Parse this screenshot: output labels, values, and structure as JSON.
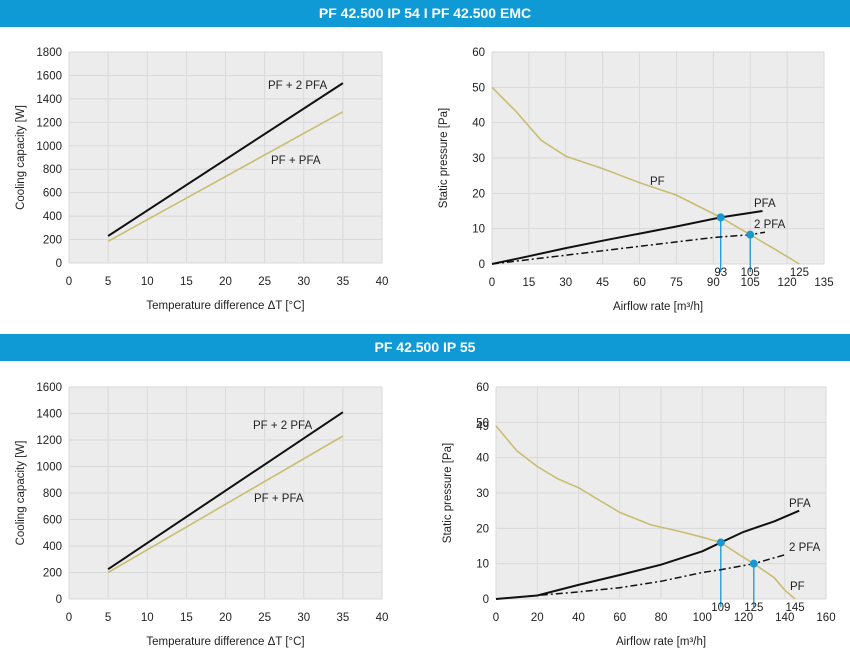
{
  "headers": {
    "top": "PF 42.500 IP 54 I PF 42.500 EMC",
    "bottom": "PF 42.500 IP 55"
  },
  "colors": {
    "banner": "#0f9ad6",
    "black": "#111111",
    "tan": "#c9bd72",
    "blue": "#1798d2",
    "grid": "#d9d9d9",
    "plot_bg": "#ececec"
  },
  "chart_data": [
    {
      "id": "cooling_top",
      "type": "line",
      "xlabel": "Temperature difference ΔT [°C]",
      "ylabel": "Cooling capacity [W]",
      "xlim": [
        0,
        40
      ],
      "ylim": [
        0,
        1800
      ],
      "xticks": [
        0,
        5,
        10,
        15,
        20,
        25,
        30,
        35,
        40
      ],
      "yticks": [
        0,
        200,
        400,
        600,
        800,
        1000,
        1200,
        1400,
        1600,
        1800
      ],
      "grid": true,
      "series": [
        {
          "name": "PF + 2 PFA",
          "color": "#111111",
          "points": [
            [
              5,
              230
            ],
            [
              35,
              1535
            ]
          ]
        },
        {
          "name": "PF + PFA",
          "color": "#c9bd72",
          "points": [
            [
              5,
              185
            ],
            [
              35,
              1290
            ]
          ]
        }
      ]
    },
    {
      "id": "airflow_top",
      "type": "line",
      "xlabel": "Airflow rate [m³/h]",
      "ylabel": "Static pressure [Pa]",
      "xlim": [
        0,
        135
      ],
      "ylim": [
        0,
        60
      ],
      "xticks": [
        0,
        15,
        30,
        45,
        60,
        75,
        90,
        105,
        120,
        135
      ],
      "yticks": [
        0,
        10,
        20,
        30,
        40,
        50,
        60
      ],
      "grid": true,
      "series": [
        {
          "name": "PF",
          "color": "#c9bd72",
          "points": [
            [
              0,
              50
            ],
            [
              10,
              43
            ],
            [
              20,
              35
            ],
            [
              30,
              30.5
            ],
            [
              45,
              27
            ],
            [
              60,
              23
            ],
            [
              75,
              19.5
            ],
            [
              93,
              13.2
            ],
            [
              105,
              8.3
            ],
            [
              115,
              4.2
            ],
            [
              125,
              0
            ]
          ]
        },
        {
          "name": "PFA",
          "color": "#111111",
          "points": [
            [
              0,
              0
            ],
            [
              15,
              2.2
            ],
            [
              30,
              4.5
            ],
            [
              45,
              6.6
            ],
            [
              60,
              8.6
            ],
            [
              75,
              10.6
            ],
            [
              93,
              13.2
            ],
            [
              110,
              15
            ]
          ]
        },
        {
          "name": "2 PFA",
          "color": "#111111",
          "dashed": true,
          "points": [
            [
              0,
              0
            ],
            [
              30,
              2.5
            ],
            [
              60,
              5
            ],
            [
              90,
              7.5
            ],
            [
              105,
              8.3
            ],
            [
              111,
              9
            ]
          ]
        }
      ],
      "operating_points": [
        {
          "x": 93,
          "y": 13.2,
          "label": "93"
        },
        {
          "x": 105,
          "y": 8.3,
          "label": "105"
        }
      ],
      "annotations": [
        {
          "x": 125,
          "label": "125"
        }
      ]
    },
    {
      "id": "cooling_bottom",
      "type": "line",
      "xlabel": "Temperature difference ΔT [°C]",
      "ylabel": "Cooling capacity [W]",
      "xlim": [
        0,
        40
      ],
      "ylim": [
        0,
        1600
      ],
      "xticks": [
        0,
        5,
        10,
        15,
        20,
        25,
        30,
        35,
        40
      ],
      "yticks": [
        0,
        200,
        400,
        600,
        800,
        1000,
        1200,
        1400,
        1600
      ],
      "grid": true,
      "series": [
        {
          "name": "PF + 2 PFA",
          "color": "#111111",
          "points": [
            [
              5,
              225
            ],
            [
              35,
              1410
            ]
          ]
        },
        {
          "name": "PF + PFA",
          "color": "#c9bd72",
          "points": [
            [
              5,
              200
            ],
            [
              35,
              1230
            ]
          ]
        }
      ]
    },
    {
      "id": "airflow_bottom",
      "type": "line",
      "xlabel": "Airflow rate [m³/h]",
      "ylabel": "Static pressure [Pa]",
      "xlim": [
        0,
        160
      ],
      "ylim": [
        0,
        60
      ],
      "xticks": [
        0,
        20,
        40,
        60,
        80,
        100,
        120,
        140,
        160
      ],
      "yticks": [
        0,
        10,
        20,
        30,
        40,
        50,
        60
      ],
      "extra_ytick": {
        "value": 49,
        "label": "49"
      },
      "grid": true,
      "series": [
        {
          "name": "PF",
          "color": "#c9bd72",
          "points": [
            [
              0,
              49
            ],
            [
              10,
              42
            ],
            [
              20,
              37.5
            ],
            [
              30,
              34
            ],
            [
              40,
              31.5
            ],
            [
              50,
              28
            ],
            [
              60,
              24.5
            ],
            [
              75,
              21
            ],
            [
              90,
              19
            ],
            [
              100,
              17.5
            ],
            [
              109,
              16
            ],
            [
              118,
              12.5
            ],
            [
              125,
              10
            ],
            [
              135,
              6
            ],
            [
              140,
              2.5
            ],
            [
              145,
              0
            ]
          ]
        },
        {
          "name": "PFA",
          "color": "#111111",
          "points": [
            [
              0,
              0
            ],
            [
              20,
              1
            ],
            [
              40,
              4
            ],
            [
              60,
              6.8
            ],
            [
              80,
              9.7
            ],
            [
              100,
              13.5
            ],
            [
              109,
              16
            ],
            [
              120,
              19
            ],
            [
              135,
              22
            ],
            [
              147,
              25
            ]
          ]
        },
        {
          "name": "2 PFA",
          "color": "#111111",
          "dashed": true,
          "points": [
            [
              0,
              0
            ],
            [
              40,
              2
            ],
            [
              60,
              3.2
            ],
            [
              80,
              5
            ],
            [
              100,
              7.5
            ],
            [
              109,
              8.3
            ],
            [
              125,
              10
            ],
            [
              140,
              12.5
            ]
          ]
        }
      ],
      "operating_points": [
        {
          "x": 109,
          "y": 16,
          "label": "109"
        },
        {
          "x": 125,
          "y": 10,
          "label": "125"
        }
      ],
      "annotations": [
        {
          "x": 145,
          "label": "145"
        }
      ]
    }
  ]
}
